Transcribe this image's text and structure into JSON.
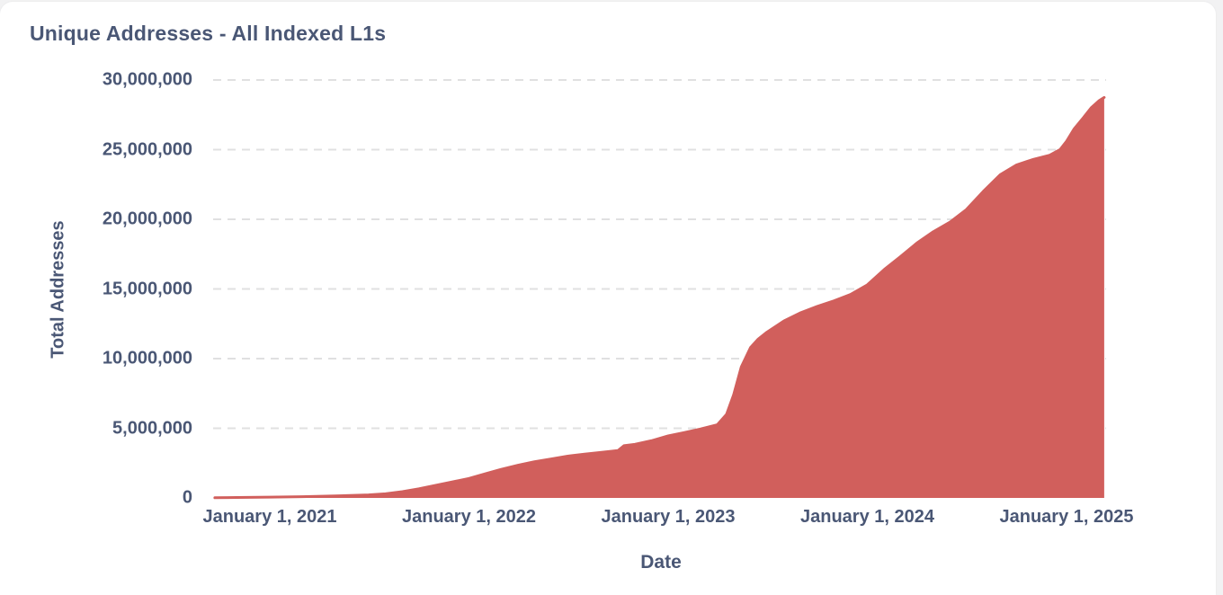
{
  "page": {
    "background_color": "#f2f2f3",
    "card_background_color": "#ffffff"
  },
  "header": {
    "title": "Unique Addresses - All Indexed L1s"
  },
  "chart_data": {
    "type": "area",
    "title": "Unique Addresses - All Indexed L1s",
    "xlabel": "Date",
    "ylabel": "Total Addresses",
    "legend": "none",
    "grid": "horizontal-dashed",
    "area_color": "#d15f5c",
    "line_color": "#d15f5c",
    "text_color": "#4a5775",
    "gridline_color": "#e0e0e1",
    "ylim": [
      0,
      30000000
    ],
    "yticks": [
      {
        "value": 0,
        "label": "0"
      },
      {
        "value": 5000000,
        "label": "5,000,000"
      },
      {
        "value": 10000000,
        "label": "10,000,000"
      },
      {
        "value": 15000000,
        "label": "15,000,000"
      },
      {
        "value": 20000000,
        "label": "20,000,000"
      },
      {
        "value": 25000000,
        "label": "25,000,000"
      },
      {
        "value": 30000000,
        "label": "30,000,000"
      }
    ],
    "xticks": [
      {
        "date": "2021-01-01",
        "label": "January 1, 2021"
      },
      {
        "date": "2022-01-01",
        "label": "January 1, 2022"
      },
      {
        "date": "2023-01-01",
        "label": "January 1, 2023"
      },
      {
        "date": "2024-01-01",
        "label": "January 1, 2024"
      },
      {
        "date": "2025-01-01",
        "label": "January 1, 2025"
      }
    ],
    "series": [
      {
        "name": "All Indexed L1s",
        "points": [
          [
            "2020-09-22",
            10000
          ],
          [
            "2020-11-01",
            30000
          ],
          [
            "2021-01-01",
            60000
          ],
          [
            "2021-03-01",
            90000
          ],
          [
            "2021-05-01",
            140000
          ],
          [
            "2021-07-01",
            220000
          ],
          [
            "2021-08-01",
            300000
          ],
          [
            "2021-09-01",
            450000
          ],
          [
            "2021-10-01",
            650000
          ],
          [
            "2021-11-01",
            900000
          ],
          [
            "2021-12-01",
            1150000
          ],
          [
            "2022-01-01",
            1400000
          ],
          [
            "2022-02-01",
            1750000
          ],
          [
            "2022-03-01",
            2050000
          ],
          [
            "2022-04-01",
            2350000
          ],
          [
            "2022-05-01",
            2600000
          ],
          [
            "2022-06-01",
            2800000
          ],
          [
            "2022-07-01",
            3000000
          ],
          [
            "2022-08-01",
            3150000
          ],
          [
            "2022-09-01",
            3280000
          ],
          [
            "2022-10-01",
            3400000
          ],
          [
            "2022-10-12",
            3750000
          ],
          [
            "2022-11-01",
            3850000
          ],
          [
            "2022-12-01",
            4100000
          ],
          [
            "2023-01-01",
            4450000
          ],
          [
            "2023-02-01",
            4700000
          ],
          [
            "2023-03-01",
            4950000
          ],
          [
            "2023-04-01",
            5250000
          ],
          [
            "2023-04-18",
            6000000
          ],
          [
            "2023-05-01",
            7400000
          ],
          [
            "2023-05-15",
            9400000
          ],
          [
            "2023-06-01",
            10800000
          ],
          [
            "2023-06-15",
            11400000
          ],
          [
            "2023-07-01",
            11900000
          ],
          [
            "2023-08-01",
            12700000
          ],
          [
            "2023-09-01",
            13300000
          ],
          [
            "2023-10-01",
            13750000
          ],
          [
            "2023-11-01",
            14150000
          ],
          [
            "2023-12-01",
            14600000
          ],
          [
            "2024-01-01",
            15300000
          ],
          [
            "2024-02-01",
            16400000
          ],
          [
            "2024-03-01",
            17300000
          ],
          [
            "2024-04-01",
            18300000
          ],
          [
            "2024-05-01",
            19100000
          ],
          [
            "2024-06-01",
            19800000
          ],
          [
            "2024-07-01",
            20700000
          ],
          [
            "2024-08-01",
            22000000
          ],
          [
            "2024-09-01",
            23200000
          ],
          [
            "2024-10-01",
            23900000
          ],
          [
            "2024-11-01",
            24300000
          ],
          [
            "2024-12-01",
            24600000
          ],
          [
            "2024-12-20",
            25000000
          ],
          [
            "2025-01-01",
            25600000
          ],
          [
            "2025-01-15",
            26500000
          ],
          [
            "2025-02-01",
            27300000
          ],
          [
            "2025-02-15",
            28000000
          ],
          [
            "2025-03-01",
            28500000
          ],
          [
            "2025-03-11",
            28750000
          ]
        ]
      }
    ]
  }
}
